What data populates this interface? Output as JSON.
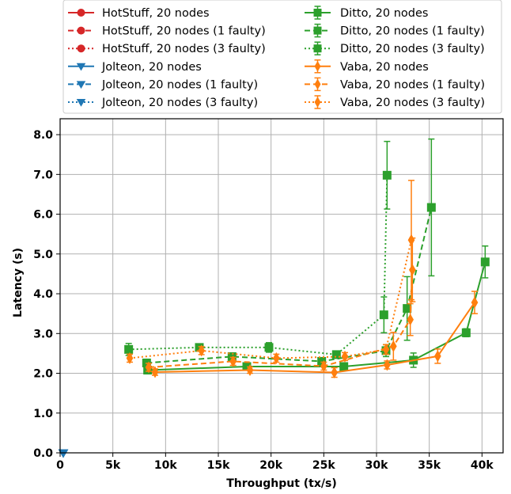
{
  "chart_data": {
    "type": "line",
    "xlabel": "Throughput (tx/s)",
    "ylabel": "Latency (s)",
    "xlim": [
      0,
      42000
    ],
    "ylim": [
      0,
      8.4
    ],
    "xticks": [
      0,
      5000,
      10000,
      15000,
      20000,
      25000,
      30000,
      35000,
      40000
    ],
    "xtick_labels": [
      "0",
      "5k",
      "10k",
      "15k",
      "20k",
      "25k",
      "30k",
      "35k",
      "40k"
    ],
    "yticks": [
      0,
      1,
      2,
      3,
      4,
      5,
      6,
      7,
      8
    ],
    "ytick_labels": [
      "0.0",
      "1.0",
      "2.0",
      "3.0",
      "4.0",
      "5.0",
      "6.0",
      "7.0",
      "8.0"
    ],
    "grid": true,
    "legend_position": "above plot, two columns",
    "series": [
      {
        "name": "HotStuff, 20 nodes",
        "color": "#d62728",
        "style": "solid",
        "marker": "circle",
        "x": [],
        "y": [],
        "err": []
      },
      {
        "name": "HotStuff, 20 nodes (1 faulty)",
        "color": "#d62728",
        "style": "dashed",
        "marker": "circle",
        "x": [],
        "y": [],
        "err": []
      },
      {
        "name": "HotStuff, 20 nodes (3 faulty)",
        "color": "#d62728",
        "style": "dotted",
        "marker": "circle",
        "x": [],
        "y": [],
        "err": []
      },
      {
        "name": "Jolteon, 20 nodes",
        "color": "#1f77b4",
        "style": "solid",
        "marker": "triangle-down",
        "x": [
          300
        ],
        "y": [
          0
        ],
        "err": [
          0
        ]
      },
      {
        "name": "Jolteon, 20 nodes (1 faulty)",
        "color": "#1f77b4",
        "style": "dashed",
        "marker": "triangle-down",
        "x": [
          300
        ],
        "y": [
          0
        ],
        "err": [
          0
        ]
      },
      {
        "name": "Jolteon, 20 nodes (3 faulty)",
        "color": "#1f77b4",
        "style": "dotted",
        "marker": "triangle-down",
        "x": [
          300
        ],
        "y": [
          0
        ],
        "err": [
          0
        ]
      },
      {
        "name": "Ditto, 20 nodes",
        "color": "#2ca02c",
        "style": "solid",
        "marker": "square",
        "x": [
          8300,
          17700,
          26900,
          33500,
          38500,
          40300
        ],
        "y": [
          2.08,
          2.17,
          2.17,
          2.33,
          3.02,
          4.8
        ],
        "err": [
          0.05,
          0.05,
          0.05,
          0.18,
          0.1,
          0.4
        ]
      },
      {
        "name": "Ditto, 20 nodes (1 faulty)",
        "color": "#2ca02c",
        "style": "dashed",
        "marker": "square",
        "x": [
          8200,
          16300,
          24800,
          30900,
          32900,
          35200
        ],
        "y": [
          2.26,
          2.42,
          2.3,
          2.57,
          3.63,
          6.17
        ],
        "err": [
          0.08,
          0.08,
          0.08,
          0.15,
          0.8,
          1.72
        ]
      },
      {
        "name": "Ditto, 20 nodes (3 faulty)",
        "color": "#2ca02c",
        "style": "dotted",
        "marker": "square",
        "x": [
          6500,
          13200,
          19800,
          26200,
          30700,
          31000
        ],
        "y": [
          2.6,
          2.65,
          2.65,
          2.47,
          3.47,
          6.98
        ],
        "err": [
          0.15,
          0.08,
          0.12,
          0.08,
          0.45,
          0.85
        ]
      },
      {
        "name": "Vaba, 20 nodes",
        "color": "#ff7f0e",
        "style": "solid",
        "marker": "diamond",
        "x": [
          9000,
          18000,
          26000,
          31000,
          35800,
          39300
        ],
        "y": [
          2.03,
          2.08,
          2.02,
          2.21,
          2.43,
          3.78
        ],
        "err": [
          0.08,
          0.08,
          0.12,
          0.1,
          0.18,
          0.28
        ]
      },
      {
        "name": "Vaba, 20 nodes (1 faulty)",
        "color": "#ff7f0e",
        "style": "dashed",
        "marker": "diamond",
        "x": [
          8400,
          16400,
          25000,
          31600,
          33200,
          33400
        ],
        "y": [
          2.15,
          2.3,
          2.18,
          2.68,
          3.35,
          4.6
        ],
        "err": [
          0.1,
          0.1,
          0.1,
          0.35,
          0.4,
          0.8
        ]
      },
      {
        "name": "Vaba, 20 nodes (3 faulty)",
        "color": "#ff7f0e",
        "style": "dotted",
        "marker": "diamond",
        "x": [
          6600,
          13400,
          20500,
          27000,
          30900,
          33300
        ],
        "y": [
          2.38,
          2.57,
          2.38,
          2.42,
          2.6,
          5.35
        ],
        "err": [
          0.1,
          0.1,
          0.1,
          0.1,
          0.12,
          1.5
        ]
      }
    ]
  }
}
